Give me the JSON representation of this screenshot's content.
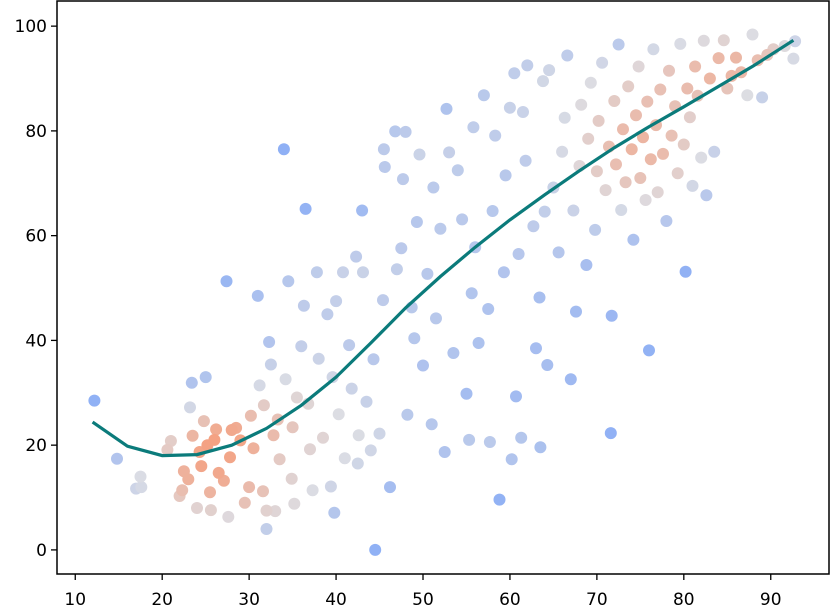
{
  "chart_data": {
    "type": "scatter",
    "title": "",
    "xlabel": "",
    "ylabel": "",
    "xlim": [
      7.9,
      96.7
    ],
    "ylim": [
      -4.6,
      104.8
    ],
    "x_ticks": [
      10,
      20,
      30,
      40,
      50,
      60,
      70,
      80,
      90
    ],
    "y_ticks": [
      0,
      20,
      40,
      60,
      80,
      100
    ],
    "x_tick_labels": [
      "10",
      "20",
      "30",
      "40",
      "50",
      "60",
      "70",
      "80",
      "90"
    ],
    "y_tick_labels": [
      "0",
      "20",
      "40",
      "60",
      "80",
      "100"
    ],
    "grid": false,
    "legend": "none",
    "colormap": {
      "low": "#8fb0f5",
      "mid": "#dcdde3",
      "high": "#f4a283",
      "meaning": "point density"
    },
    "points": [
      [
        12.2,
        28.5
      ],
      [
        14.8,
        17.4
      ],
      [
        17.0,
        11.7
      ],
      [
        17.5,
        14.0
      ],
      [
        17.6,
        12.0
      ],
      [
        20.6,
        19.1
      ],
      [
        21.0,
        20.8
      ],
      [
        22.0,
        10.3
      ],
      [
        22.3,
        11.4
      ],
      [
        22.5,
        15.0
      ],
      [
        23.0,
        13.5
      ],
      [
        23.2,
        27.2
      ],
      [
        23.4,
        31.9
      ],
      [
        23.5,
        21.8
      ],
      [
        24.0,
        8.0
      ],
      [
        24.3,
        18.7
      ],
      [
        24.5,
        16.0
      ],
      [
        24.8,
        24.6
      ],
      [
        25.0,
        33.0
      ],
      [
        25.2,
        20.0
      ],
      [
        25.5,
        11.0
      ],
      [
        25.6,
        7.6
      ],
      [
        26.0,
        21.0
      ],
      [
        26.2,
        23.0
      ],
      [
        26.5,
        14.7
      ],
      [
        27.1,
        13.2
      ],
      [
        27.4,
        51.3
      ],
      [
        27.8,
        17.7
      ],
      [
        27.6,
        6.3
      ],
      [
        28.0,
        22.9
      ],
      [
        28.5,
        23.3
      ],
      [
        29.0,
        20.9
      ],
      [
        29.5,
        9.0
      ],
      [
        30.0,
        12.0
      ],
      [
        30.2,
        25.6
      ],
      [
        30.5,
        19.4
      ],
      [
        31.0,
        48.5
      ],
      [
        31.2,
        31.4
      ],
      [
        31.6,
        11.2
      ],
      [
        31.7,
        27.6
      ],
      [
        32.0,
        4.0
      ],
      [
        32.0,
        7.5
      ],
      [
        32.3,
        39.7
      ],
      [
        32.5,
        35.4
      ],
      [
        32.8,
        21.9
      ],
      [
        33.0,
        7.4
      ],
      [
        33.3,
        24.9
      ],
      [
        33.5,
        17.3
      ],
      [
        34.0,
        76.5
      ],
      [
        34.2,
        32.6
      ],
      [
        34.5,
        51.3
      ],
      [
        34.9,
        13.6
      ],
      [
        35.0,
        23.4
      ],
      [
        35.2,
        8.8
      ],
      [
        35.5,
        29.1
      ],
      [
        36.0,
        38.9
      ],
      [
        36.3,
        46.6
      ],
      [
        36.5,
        65.1
      ],
      [
        36.8,
        27.9
      ],
      [
        37.0,
        19.2
      ],
      [
        37.3,
        11.4
      ],
      [
        37.8,
        53.0
      ],
      [
        38.0,
        36.5
      ],
      [
        38.5,
        21.4
      ],
      [
        39.0,
        45.0
      ],
      [
        39.4,
        12.1
      ],
      [
        39.6,
        33.0
      ],
      [
        39.8,
        7.1
      ],
      [
        40.0,
        47.5
      ],
      [
        40.3,
        25.9
      ],
      [
        40.8,
        53.0
      ],
      [
        41.0,
        17.5
      ],
      [
        41.5,
        39.1
      ],
      [
        41.8,
        30.8
      ],
      [
        42.3,
        56.0
      ],
      [
        42.5,
        16.5
      ],
      [
        42.6,
        21.9
      ],
      [
        43.0,
        64.8
      ],
      [
        43.1,
        53.0
      ],
      [
        43.5,
        28.3
      ],
      [
        44.0,
        19.0
      ],
      [
        44.3,
        36.4
      ],
      [
        44.5,
        0.0
      ],
      [
        45.0,
        22.2
      ],
      [
        45.4,
        47.7
      ],
      [
        45.5,
        76.5
      ],
      [
        45.6,
        73.1
      ],
      [
        46.2,
        12.0
      ],
      [
        46.8,
        79.9
      ],
      [
        47.0,
        53.6
      ],
      [
        47.5,
        57.6
      ],
      [
        47.7,
        70.8
      ],
      [
        48.0,
        79.8
      ],
      [
        48.2,
        25.8
      ],
      [
        48.7,
        46.3
      ],
      [
        49.0,
        40.4
      ],
      [
        49.3,
        62.6
      ],
      [
        49.6,
        75.5
      ],
      [
        50.0,
        35.2
      ],
      [
        50.5,
        52.7
      ],
      [
        51.0,
        24.0
      ],
      [
        51.2,
        69.2
      ],
      [
        51.5,
        44.2
      ],
      [
        52.0,
        61.3
      ],
      [
        52.5,
        18.7
      ],
      [
        52.7,
        84.2
      ],
      [
        53.0,
        75.9
      ],
      [
        53.5,
        37.6
      ],
      [
        54.0,
        72.5
      ],
      [
        54.5,
        63.1
      ],
      [
        55.0,
        29.8
      ],
      [
        55.3,
        21.0
      ],
      [
        55.6,
        49.0
      ],
      [
        55.8,
        80.7
      ],
      [
        56.0,
        57.8
      ],
      [
        56.4,
        39.5
      ],
      [
        57.0,
        86.8
      ],
      [
        57.5,
        46.0
      ],
      [
        57.7,
        20.6
      ],
      [
        58.0,
        64.7
      ],
      [
        58.3,
        79.1
      ],
      [
        58.8,
        9.6
      ],
      [
        59.3,
        53.0
      ],
      [
        59.5,
        71.5
      ],
      [
        60.0,
        84.4
      ],
      [
        60.2,
        17.3
      ],
      [
        60.5,
        91.0
      ],
      [
        60.7,
        29.3
      ],
      [
        61.0,
        56.5
      ],
      [
        61.3,
        21.4
      ],
      [
        61.5,
        83.6
      ],
      [
        61.8,
        74.3
      ],
      [
        62.0,
        92.5
      ],
      [
        62.7,
        61.8
      ],
      [
        63.0,
        38.5
      ],
      [
        63.4,
        48.2
      ],
      [
        63.5,
        19.6
      ],
      [
        63.8,
        89.5
      ],
      [
        64.0,
        64.6
      ],
      [
        64.3,
        35.3
      ],
      [
        64.5,
        91.6
      ],
      [
        65.0,
        69.2
      ],
      [
        65.6,
        56.8
      ],
      [
        66.0,
        76.0
      ],
      [
        66.3,
        82.5
      ],
      [
        66.6,
        94.4
      ],
      [
        67.0,
        32.6
      ],
      [
        67.3,
        64.8
      ],
      [
        67.6,
        45.5
      ],
      [
        68.0,
        73.3
      ],
      [
        68.2,
        85.0
      ],
      [
        68.8,
        54.4
      ],
      [
        69.0,
        78.5
      ],
      [
        69.3,
        89.2
      ],
      [
        69.8,
        61.1
      ],
      [
        70.0,
        72.3
      ],
      [
        70.2,
        81.9
      ],
      [
        70.6,
        93.0
      ],
      [
        71.0,
        68.7
      ],
      [
        71.4,
        77.0
      ],
      [
        71.6,
        22.3
      ],
      [
        71.7,
        44.7
      ],
      [
        72.0,
        85.7
      ],
      [
        72.2,
        73.6
      ],
      [
        72.5,
        96.5
      ],
      [
        72.8,
        64.9
      ],
      [
        73.0,
        80.3
      ],
      [
        73.3,
        70.2
      ],
      [
        73.6,
        88.5
      ],
      [
        74.0,
        76.5
      ],
      [
        74.2,
        59.2
      ],
      [
        74.5,
        83.0
      ],
      [
        74.8,
        92.3
      ],
      [
        75.0,
        71.0
      ],
      [
        75.3,
        78.8
      ],
      [
        75.6,
        66.8
      ],
      [
        75.8,
        85.6
      ],
      [
        76.0,
        38.1
      ],
      [
        76.2,
        74.6
      ],
      [
        76.5,
        95.6
      ],
      [
        76.8,
        81.1
      ],
      [
        77.0,
        68.3
      ],
      [
        77.3,
        87.9
      ],
      [
        77.6,
        75.6
      ],
      [
        78.0,
        62.8
      ],
      [
        78.3,
        91.5
      ],
      [
        78.6,
        79.1
      ],
      [
        79.0,
        84.7
      ],
      [
        79.3,
        71.9
      ],
      [
        79.6,
        96.6
      ],
      [
        80.0,
        77.4
      ],
      [
        80.2,
        53.1
      ],
      [
        80.4,
        88.1
      ],
      [
        80.7,
        82.6
      ],
      [
        81.0,
        69.5
      ],
      [
        81.3,
        92.3
      ],
      [
        81.6,
        86.7
      ],
      [
        82.0,
        74.9
      ],
      [
        82.3,
        97.2
      ],
      [
        82.6,
        67.7
      ],
      [
        83.0,
        90.0
      ],
      [
        83.5,
        76.0
      ],
      [
        84.0,
        93.9
      ],
      [
        84.6,
        97.3
      ],
      [
        85.0,
        88.1
      ],
      [
        85.5,
        90.5
      ],
      [
        86.0,
        94.0
      ],
      [
        86.6,
        91.2
      ],
      [
        87.3,
        86.8
      ],
      [
        87.9,
        98.4
      ],
      [
        88.5,
        93.5
      ],
      [
        89.0,
        86.4
      ],
      [
        89.6,
        94.5
      ],
      [
        90.3,
        95.6
      ],
      [
        91.6,
        96.2
      ],
      [
        92.6,
        93.8
      ],
      [
        92.8,
        97.1
      ]
    ],
    "trend_line": {
      "color": "#0b7b7b",
      "x": [
        12,
        16,
        20,
        24,
        28,
        32,
        36,
        40,
        44,
        48,
        52,
        56,
        60,
        64,
        68,
        72,
        76,
        80,
        84,
        88,
        92.6
      ],
      "y": [
        24.4,
        19.8,
        18.0,
        18.2,
        20.0,
        23.2,
        27.6,
        33.0,
        39.5,
        46.2,
        52.2,
        57.8,
        63.0,
        67.8,
        72.4,
        76.8,
        80.8,
        84.6,
        88.5,
        92.4,
        97.3
      ]
    }
  }
}
